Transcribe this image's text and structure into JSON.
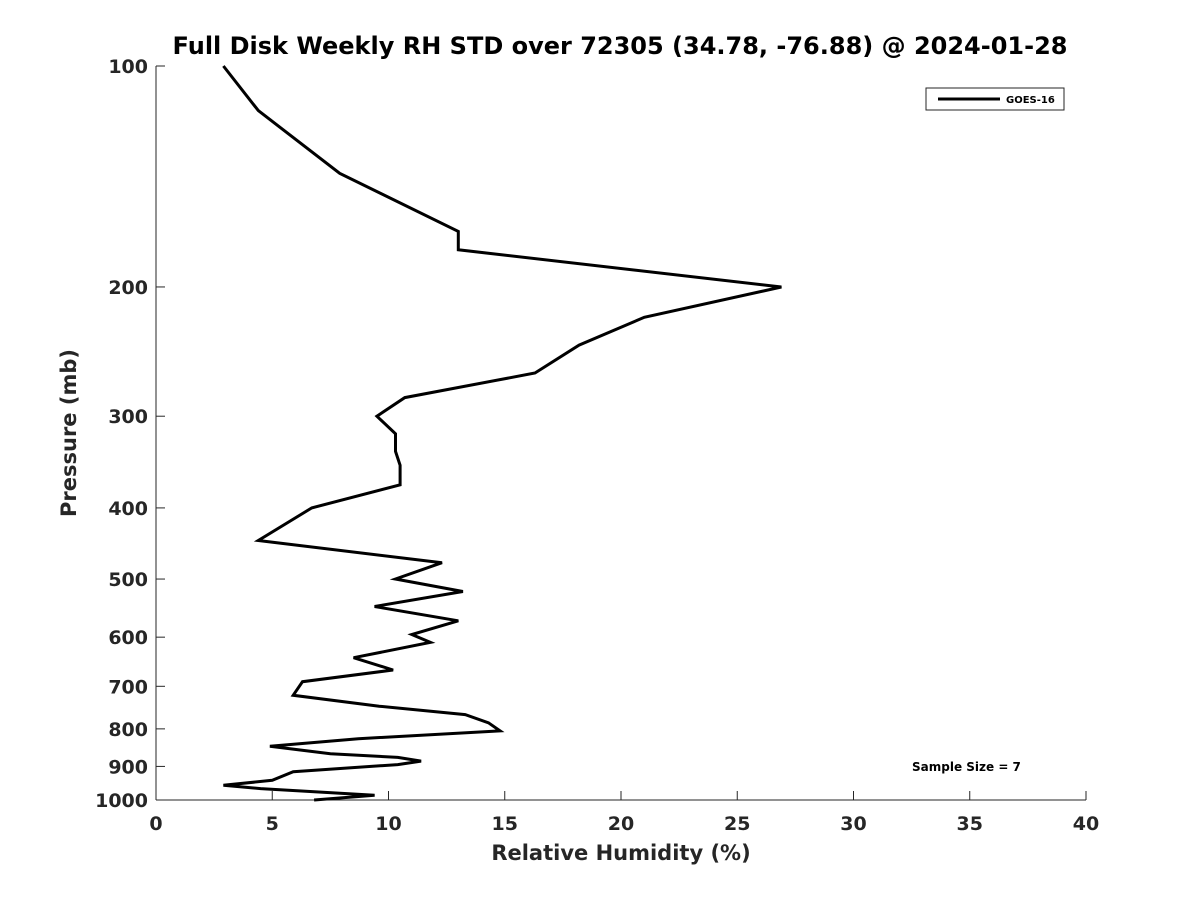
{
  "chart_data": {
    "type": "line",
    "title": "Full Disk Weekly RH STD over 72305 (34.78, -76.88) @ 2024-01-28",
    "xlabel": "Relative Humidity (%)",
    "ylabel": "Pressure (mb)",
    "xlim": [
      0,
      40
    ],
    "ylim": [
      100,
      1000
    ],
    "y_scale": "log",
    "y_reversed": true,
    "x_ticks": [
      "0",
      "5",
      "10",
      "15",
      "20",
      "25",
      "30",
      "35",
      "40"
    ],
    "y_ticks": [
      "100",
      "200",
      "300",
      "400",
      "500",
      "600",
      "700",
      "800",
      "900",
      "1000"
    ],
    "grid": false,
    "legend_position": "top-right",
    "annotation": "Sample Size = 7",
    "series": [
      {
        "name": "GOES-16",
        "color": "#000000",
        "x": [
          2.9,
          4.4,
          7.9,
          13.0,
          13.0,
          26.9,
          21.0,
          18.2,
          16.3,
          10.7,
          9.5,
          10.3,
          10.3,
          10.5,
          10.5,
          6.7,
          4.4,
          12.3,
          10.3,
          13.2,
          9.4,
          13.0,
          11.0,
          11.8,
          8.5,
          10.2,
          6.3,
          5.9,
          9.6,
          13.3,
          14.3,
          14.8,
          8.7,
          4.9,
          7.5,
          10.4,
          11.4,
          10.4,
          5.9,
          5.0,
          2.9,
          4.5,
          9.4,
          6.8
        ],
        "y": [
          100,
          115,
          140,
          168,
          178,
          200,
          220,
          240,
          262,
          283,
          300,
          317,
          335,
          350,
          372,
          400,
          443,
          475,
          500,
          520,
          545,
          570,
          595,
          610,
          640,
          665,
          690,
          720,
          745,
          765,
          785,
          805,
          825,
          845,
          865,
          875,
          885,
          895,
          915,
          940,
          955,
          965,
          985,
          1000
        ]
      }
    ]
  }
}
